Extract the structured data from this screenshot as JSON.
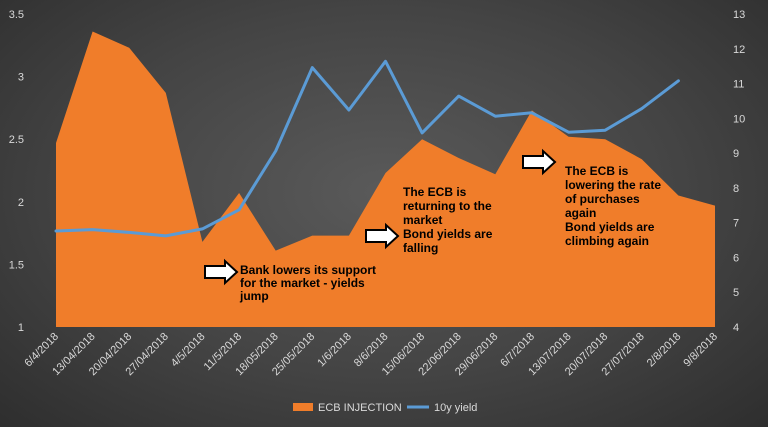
{
  "chart_data": {
    "type": "area+line",
    "categories": [
      "6/4/2018",
      "13/04/2018",
      "20/04/2018",
      "27/04/2018",
      "4/5/2018",
      "11/5/2018",
      "18/05/2018",
      "25/05/2018",
      "1/6/2018",
      "8/6/2018",
      "15/06/2018",
      "22/06/2018",
      "29/06/2018",
      "6/7/2018",
      "13/07/2018",
      "20/07/2018",
      "27/07/2018",
      "2/8/2018",
      "9/8/2018"
    ],
    "series": [
      {
        "name": "ECB INJECTION",
        "axis": "left",
        "style": "area",
        "color": "#f07d2a",
        "values": [
          2.47,
          3.36,
          3.23,
          2.87,
          1.68,
          2.07,
          1.61,
          1.73,
          1.73,
          2.23,
          2.5,
          2.35,
          2.22,
          2.73,
          2.52,
          2.5,
          2.34,
          2.05,
          1.97
        ]
      },
      {
        "name": "10y yield",
        "axis": "right",
        "style": "line",
        "color": "#5b9bd5",
        "values": [
          6.76,
          6.8,
          6.72,
          6.62,
          6.82,
          7.37,
          9.06,
          11.46,
          10.24,
          11.64,
          9.58,
          10.64,
          10.06,
          10.16,
          9.6,
          9.66,
          10.28,
          11.08,
          null
        ]
      }
    ],
    "y_left": {
      "min": 1,
      "max": 3.5,
      "ticks": [
        "1",
        "1.5",
        "2",
        "2.5",
        "3",
        "3.5"
      ]
    },
    "y_right": {
      "min": 4,
      "max": 13,
      "ticks": [
        "4",
        "5",
        "6",
        "7",
        "8",
        "9",
        "10",
        "11",
        "12",
        "13"
      ]
    },
    "gridlines": false,
    "legend_position": "bottom",
    "annotations": [
      {
        "index": 6,
        "text_lines": [
          "Bank lowers its support",
          "for the market - yields",
          "jump"
        ]
      },
      {
        "index": 9,
        "text_lines": [
          "The ECB is",
          "returning to the",
          "market",
          "Bond yields are",
          "falling"
        ]
      },
      {
        "index": 13,
        "text_lines": [
          "The ECB is",
          "lowering the rate",
          "of purchases",
          "again",
          "Bond yields are",
          "climbing again"
        ]
      }
    ]
  }
}
